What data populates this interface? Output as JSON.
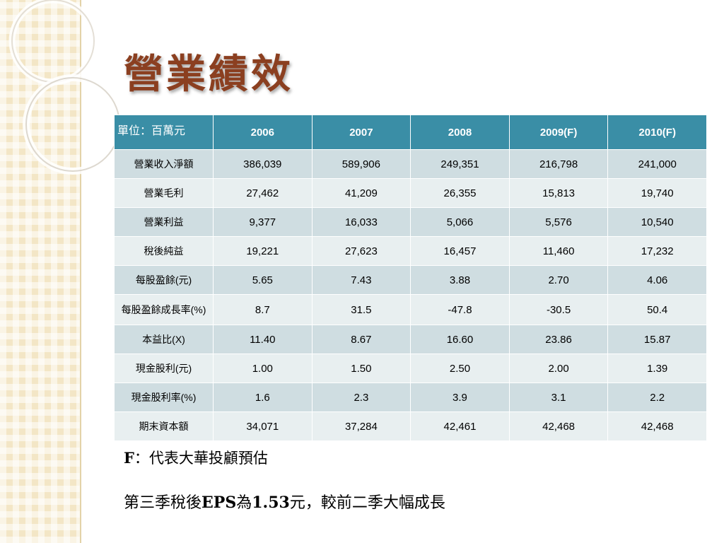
{
  "title": "營業績效",
  "table": {
    "header": [
      "單位：百萬元",
      "2006",
      "2007",
      "2008",
      "2009(F)",
      "2010(F)"
    ],
    "rows": [
      {
        "label": "營業收入淨額",
        "values": [
          "386,039",
          "589,906",
          "249,351",
          "216,798",
          "241,000"
        ]
      },
      {
        "label": "營業毛利",
        "values": [
          "27,462",
          "41,209",
          "26,355",
          "15,813",
          "19,740"
        ]
      },
      {
        "label": "營業利益",
        "values": [
          "9,377",
          "16,033",
          "5,066",
          "5,576",
          "10,540"
        ]
      },
      {
        "label": "稅後純益",
        "values": [
          "19,221",
          "27,623",
          "16,457",
          "11,460",
          "17,232"
        ]
      },
      {
        "label": "每股盈餘(元)",
        "values": [
          "5.65",
          "7.43",
          "3.88",
          "2.70",
          "4.06"
        ]
      },
      {
        "label": "每股盈餘成長率(%)",
        "values": [
          "8.7",
          "31.5",
          "-47.8",
          "-30.5",
          "50.4"
        ]
      },
      {
        "label": "本益比(X)",
        "values": [
          "11.40",
          "8.67",
          "16.60",
          "23.86",
          "15.87"
        ]
      },
      {
        "label": "現金股利(元)",
        "values": [
          "1.00",
          "1.50",
          "2.50",
          "2.00",
          "1.39"
        ]
      },
      {
        "label": "現金股利率(%)",
        "values": [
          "1.6",
          "2.3",
          "3.9",
          "3.1",
          "2.2"
        ]
      },
      {
        "label": "期末資本額",
        "values": [
          "34,071",
          "37,284",
          "42,461",
          "42,468",
          "42,468"
        ]
      }
    ]
  },
  "note": {
    "f_symbol": "F",
    "f_text": "：代表大華投顧預估"
  },
  "summary": {
    "part1": "第三季稅後",
    "eps": "EPS",
    "part2": "為",
    "value": "1.53",
    "part3": "元，較前二季大幅成長"
  },
  "colors": {
    "title": "#8b3f20",
    "header_bg": "#3a8ea6",
    "row_odd": "#cfdde1",
    "row_even": "#e8eff0",
    "sidebar": "#f3e6c6"
  }
}
